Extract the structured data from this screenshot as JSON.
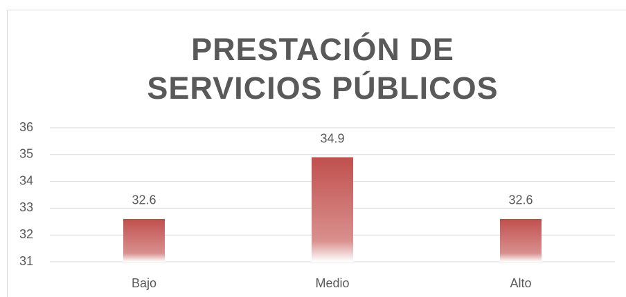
{
  "chart_data": {
    "type": "bar",
    "title": "PRESTACIÓN DE SERVICIOS PÚBLICOS",
    "categories": [
      "Bajo",
      "Medio",
      "Alto"
    ],
    "values": [
      32.6,
      34.9,
      32.6
    ],
    "color": "#c0504d",
    "ylim": [
      31,
      36
    ],
    "yticks": [
      31,
      32,
      33,
      34,
      35,
      36
    ],
    "grid": true
  }
}
